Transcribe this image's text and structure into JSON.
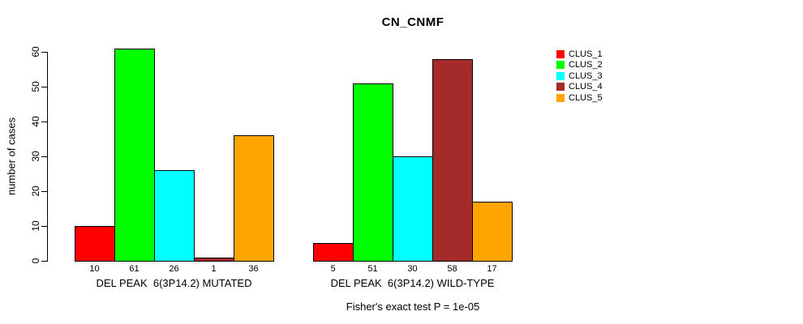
{
  "chart_data": {
    "type": "bar",
    "title": "CN_CNMF",
    "ylabel": "number of cases",
    "ylim": [
      0,
      60
    ],
    "yticks": [
      0,
      10,
      20,
      30,
      40,
      50,
      60
    ],
    "grid": false,
    "legend_position": "right",
    "bar_value_labels": true,
    "categories": [
      "DEL PEAK  6(3P14.2) MUTATED",
      "DEL PEAK  6(3P14.2) WILD-TYPE"
    ],
    "series": [
      {
        "name": "CLUS_1",
        "color": "#FF0000",
        "values": [
          10,
          5
        ]
      },
      {
        "name": "CLUS_2",
        "color": "#00FF00",
        "values": [
          61,
          51
        ]
      },
      {
        "name": "CLUS_3",
        "color": "#00FFFF",
        "values": [
          26,
          30
        ]
      },
      {
        "name": "CLUS_4",
        "color": "#A52A2A",
        "values": [
          1,
          58
        ]
      },
      {
        "name": "CLUS_5",
        "color": "#FFA500",
        "values": [
          36,
          17
        ]
      }
    ],
    "annotation": "Fisher's exact test P = 1e-05"
  }
}
